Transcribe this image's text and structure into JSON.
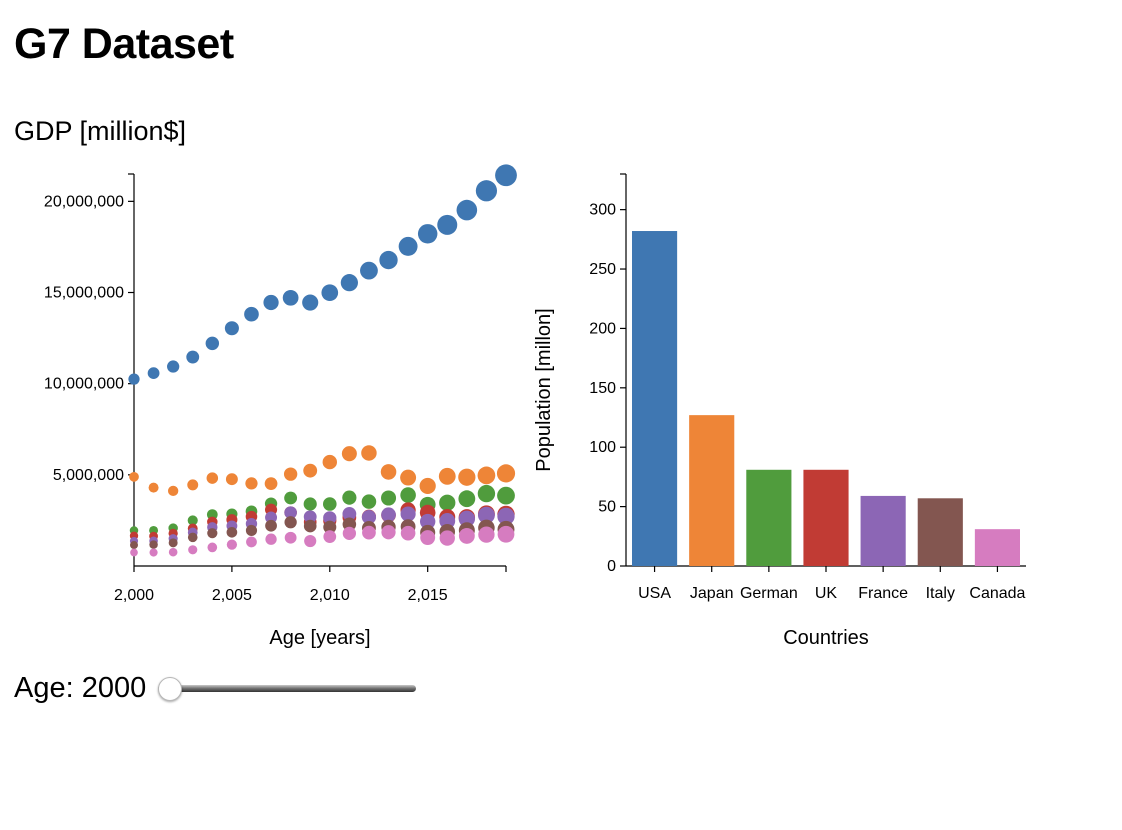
{
  "page": {
    "title": "G7 Dataset",
    "gdp_label": "GDP [million$]"
  },
  "slider": {
    "label_prefix": "Age:",
    "value": 2000,
    "min": 2000,
    "max": 2019
  },
  "colors": {
    "USA": "#3f77b2",
    "Japan": "#ee8537",
    "Germany": "#509c3d",
    "UK": "#c13b34",
    "France": "#8c66b5",
    "Italy": "#835650",
    "Canada": "#d67cc0"
  },
  "chart_data": [
    {
      "type": "scatter",
      "title": "GDP [million$]",
      "xlabel": "Age [years]",
      "ylabel": "",
      "xlim": [
        2000,
        2019
      ],
      "ylim": [
        0,
        21500000
      ],
      "xticks": [
        2000,
        2005,
        2010,
        2015
      ],
      "xtick_labels": [
        "2,000",
        "2,005",
        "2,010",
        "2,015"
      ],
      "yticks": [
        5000000,
        10000000,
        15000000,
        20000000
      ],
      "ytick_labels": [
        "5,000,000",
        "10,000,000",
        "15,000,000",
        "20,000,000"
      ],
      "point_size_encodes": "GDP",
      "x": [
        2000,
        2001,
        2002,
        2003,
        2004,
        2005,
        2006,
        2007,
        2008,
        2009,
        2010,
        2011,
        2012,
        2013,
        2014,
        2015,
        2016,
        2017,
        2018,
        2019
      ],
      "series": [
        {
          "name": "USA",
          "values": [
            10250000,
            10580000,
            10940000,
            11460000,
            12210000,
            13040000,
            13810000,
            14450000,
            14710000,
            14450000,
            14990000,
            15540000,
            16200000,
            16780000,
            17530000,
            18220000,
            18710000,
            19520000,
            20580000,
            21430000
          ]
        },
        {
          "name": "Japan",
          "values": [
            4890000,
            4300000,
            4120000,
            4450000,
            4820000,
            4760000,
            4530000,
            4520000,
            5040000,
            5230000,
            5700000,
            6160000,
            6200000,
            5160000,
            4850000,
            4390000,
            4920000,
            4870000,
            4970000,
            5080000
          ]
        },
        {
          "name": "Germany",
          "values": [
            1950000,
            1950000,
            2080000,
            2500000,
            2820000,
            2850000,
            3000000,
            3420000,
            3730000,
            3400000,
            3400000,
            3750000,
            3530000,
            3730000,
            3890000,
            3360000,
            3470000,
            3690000,
            3970000,
            3860000
          ]
        },
        {
          "name": "UK",
          "values": [
            1660000,
            1640000,
            1790000,
            2060000,
            2420000,
            2540000,
            2710000,
            3090000,
            2930000,
            2410000,
            2480000,
            2660000,
            2700000,
            2790000,
            3070000,
            2930000,
            2690000,
            2670000,
            2860000,
            2830000
          ]
        },
        {
          "name": "France",
          "values": [
            1370000,
            1380000,
            1500000,
            1840000,
            2120000,
            2200000,
            2320000,
            2660000,
            2930000,
            2700000,
            2640000,
            2860000,
            2680000,
            2810000,
            2850000,
            2440000,
            2470000,
            2590000,
            2790000,
            2720000
          ]
        },
        {
          "name": "Italy",
          "values": [
            1150000,
            1170000,
            1270000,
            1570000,
            1800000,
            1850000,
            1950000,
            2210000,
            2400000,
            2190000,
            2130000,
            2290000,
            2090000,
            2140000,
            2160000,
            1840000,
            1880000,
            1960000,
            2090000,
            2010000
          ]
        },
        {
          "name": "Canada",
          "values": [
            740000,
            740000,
            760000,
            890000,
            1020000,
            1170000,
            1320000,
            1470000,
            1550000,
            1370000,
            1610000,
            1790000,
            1830000,
            1850000,
            1800000,
            1560000,
            1530000,
            1650000,
            1720000,
            1740000
          ]
        }
      ]
    },
    {
      "type": "bar",
      "title": "",
      "xlabel": "Countries",
      "ylabel": "Population [millon]",
      "ylim": [
        0,
        330
      ],
      "yticks": [
        0,
        50,
        100,
        150,
        200,
        250,
        300
      ],
      "categories": [
        "USA",
        "Japan",
        "Germany",
        "UK",
        "France",
        "Italy",
        "Canada"
      ],
      "category_labels": [
        "USA",
        "Japan",
        "German",
        "UK",
        "France",
        "Italy",
        "Canada"
      ],
      "values": [
        282,
        127,
        81,
        81,
        59,
        57,
        31
      ]
    }
  ]
}
